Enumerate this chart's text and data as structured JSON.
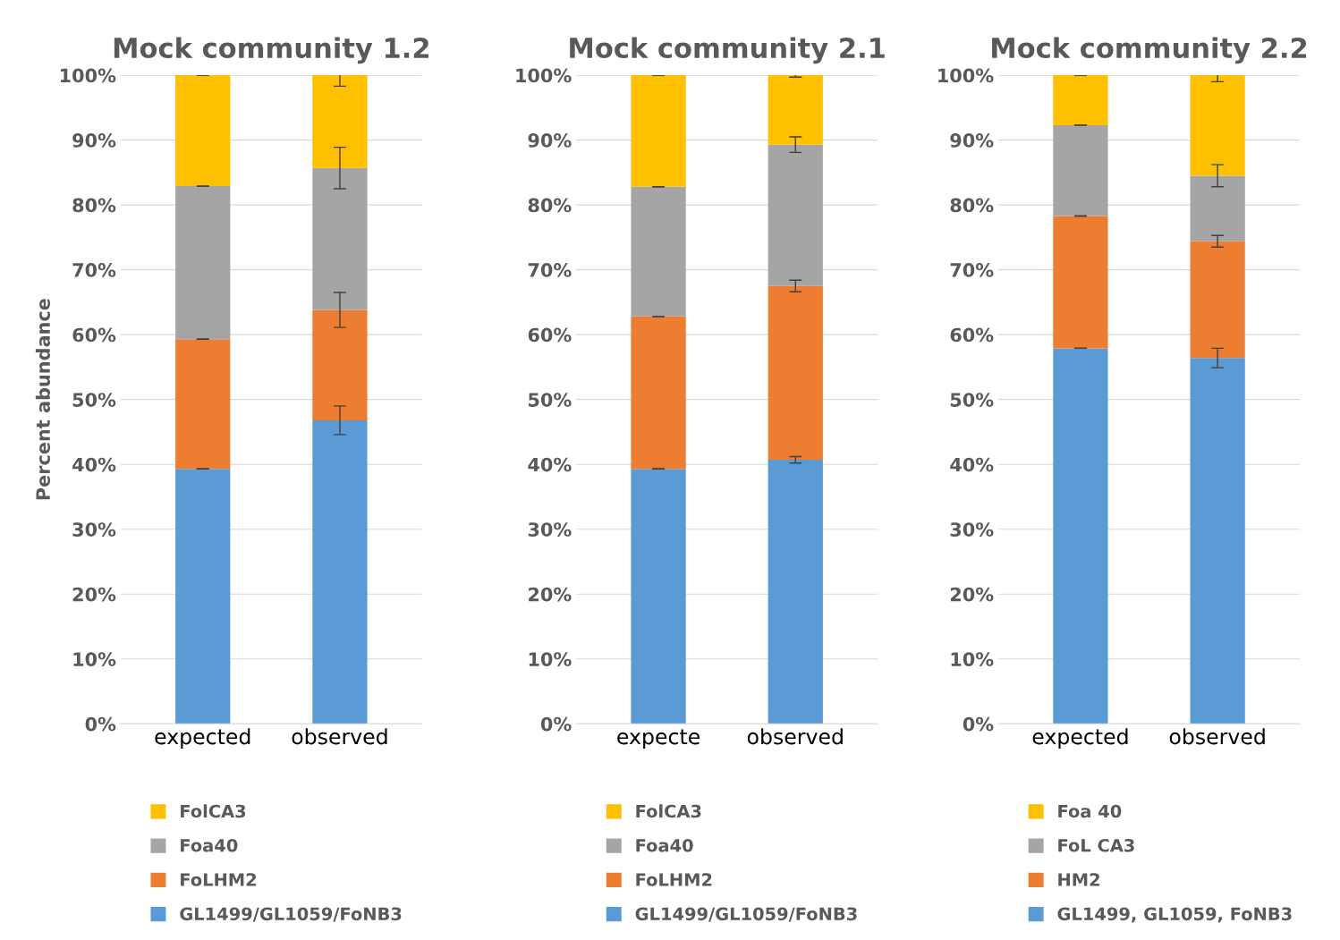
{
  "chart_data": [
    {
      "type": "bar",
      "title": "Mock community 1.2",
      "ylabel": "Percent abundance",
      "categories": [
        "expected",
        "observed"
      ],
      "stacked": true,
      "ylim": [
        0,
        100
      ],
      "yticks": [
        {
          "value": 0,
          "label": "0%"
        },
        {
          "value": 10,
          "label": "10%"
        },
        {
          "value": 20,
          "label": "20%"
        },
        {
          "value": 30,
          "label": "30%"
        },
        {
          "value": 40,
          "label": "40%"
        },
        {
          "value": 50,
          "label": "50%"
        },
        {
          "value": 60,
          "label": "60%"
        },
        {
          "value": 70,
          "label": "70%"
        },
        {
          "value": 80,
          "label": "80%"
        },
        {
          "value": 90,
          "label": "90%"
        },
        {
          "value": 100,
          "label": "100%"
        }
      ],
      "grid": "y",
      "legend": "bottom",
      "series": [
        {
          "name": "GL1499/GL1059/FoNB3",
          "color": "#5b9bd5",
          "values": [
            39.3,
            46.8
          ],
          "errors": [
            0,
            2.2
          ]
        },
        {
          "name": "FoLHM2",
          "color": "#ed7d31",
          "values": [
            20.0,
            17.0
          ],
          "errors": [
            0,
            2.7
          ]
        },
        {
          "name": "Foa40",
          "color": "#a5a5a5",
          "values": [
            23.6,
            21.9
          ],
          "errors": [
            0,
            3.2
          ]
        },
        {
          "name": "FolCA3",
          "color": "#ffc000",
          "values": [
            17.1,
            14.3
          ],
          "errors": [
            0,
            1.7
          ]
        }
      ]
    },
    {
      "type": "bar",
      "title": "Mock community 2.1",
      "categories": [
        "expecte",
        "observed"
      ],
      "stacked": true,
      "ylim": [
        0,
        100
      ],
      "yticks": [
        {
          "value": 0,
          "label": "0%"
        },
        {
          "value": 10,
          "label": "10%"
        },
        {
          "value": 20,
          "label": "20%"
        },
        {
          "value": 30,
          "label": "30%"
        },
        {
          "value": 40,
          "label": "40%"
        },
        {
          "value": 50,
          "label": "50%"
        },
        {
          "value": 60,
          "label": "60%"
        },
        {
          "value": 70,
          "label": "70%"
        },
        {
          "value": 80,
          "label": "80%"
        },
        {
          "value": 90,
          "label": "90%"
        },
        {
          "value": 100,
          "label": "100%"
        }
      ],
      "grid": "y",
      "legend": "bottom",
      "series": [
        {
          "name": "GL1499/GL1059/FoNB3",
          "color": "#5b9bd5",
          "values": [
            39.3,
            40.7
          ],
          "errors": [
            0,
            0.5
          ]
        },
        {
          "name": "FoLHM2",
          "color": "#ed7d31",
          "values": [
            23.5,
            26.8
          ],
          "errors": [
            0,
            0.9
          ]
        },
        {
          "name": "Foa40",
          "color": "#a5a5a5",
          "values": [
            20.0,
            21.8
          ],
          "errors": [
            0,
            1.2
          ]
        },
        {
          "name": "FolCA3",
          "color": "#ffc000",
          "values": [
            17.2,
            10.7
          ],
          "errors": [
            0,
            0.3
          ]
        }
      ]
    },
    {
      "type": "bar",
      "title": "Mock community 2.2",
      "categories": [
        "expected",
        "observed"
      ],
      "stacked": true,
      "ylim": [
        0,
        100
      ],
      "yticks": [
        {
          "value": 0,
          "label": "0%"
        },
        {
          "value": 10,
          "label": "10%"
        },
        {
          "value": 20,
          "label": "20%"
        },
        {
          "value": 30,
          "label": "30%"
        },
        {
          "value": 40,
          "label": "40%"
        },
        {
          "value": 50,
          "label": "50%"
        },
        {
          "value": 60,
          "label": "60%"
        },
        {
          "value": 70,
          "label": "70%"
        },
        {
          "value": 80,
          "label": "80%"
        },
        {
          "value": 90,
          "label": "90%"
        },
        {
          "value": 100,
          "label": "100%"
        }
      ],
      "grid": "y",
      "legend": "bottom",
      "series": [
        {
          "name": "GL1499, GL1059, FoNB3",
          "color": "#5b9bd5",
          "values": [
            57.9,
            56.4
          ],
          "errors": [
            0,
            1.5
          ]
        },
        {
          "name": "HM2",
          "color": "#ed7d31",
          "values": [
            20.4,
            18.0
          ],
          "errors": [
            0,
            0.9
          ]
        },
        {
          "name": "FoL CA3",
          "color": "#a5a5a5",
          "values": [
            14.0,
            10.1
          ],
          "errors": [
            0,
            1.7
          ]
        },
        {
          "name": "Foa 40",
          "color": "#ffc000",
          "values": [
            7.7,
            15.5
          ],
          "errors": [
            0,
            1.0
          ]
        }
      ]
    }
  ]
}
